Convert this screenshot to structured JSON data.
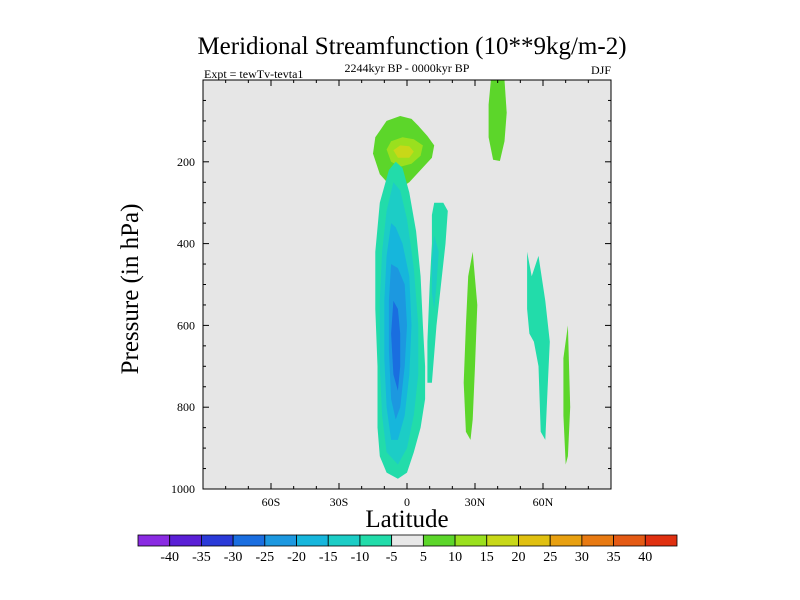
{
  "chart_data": {
    "type": "heatmap",
    "title": "Meridional Streamfunction (10**9kg/m-2)",
    "left_label": "Expt = tewTv-tevta1",
    "center_label": "2244kyr BP - 0000kyr BP",
    "right_label": "DJF",
    "xlabel": "Latitude",
    "ylabel": "Pressure (in hPa)",
    "xlim": [
      -90,
      90
    ],
    "ylim": [
      1000,
      0
    ],
    "x_ticks": [
      {
        "value": -60,
        "label": "60S"
      },
      {
        "value": -30,
        "label": "30S"
      },
      {
        "value": 0,
        "label": "0"
      },
      {
        "value": 30,
        "label": "30N"
      },
      {
        "value": 60,
        "label": "60N"
      }
    ],
    "y_ticks": [
      {
        "value": 200,
        "label": "200"
      },
      {
        "value": 400,
        "label": "400"
      },
      {
        "value": 600,
        "label": "600"
      },
      {
        "value": 800,
        "label": "800"
      },
      {
        "value": 1000,
        "label": "1000"
      }
    ],
    "missing_color": "#e6e6e6",
    "colorbar": {
      "labels": [
        "-40",
        "-35",
        "-30",
        "-25",
        "-20",
        "-15",
        "-10",
        "-5",
        "5",
        "10",
        "15",
        "20",
        "25",
        "30",
        "35",
        "40"
      ],
      "colors": [
        "#8a2be2",
        "#5a1fd6",
        "#2a3ad8",
        "#1a6ee0",
        "#1c98e0",
        "#16b6dc",
        "#1ccdc6",
        "#22dcaa",
        "#e8e8e8",
        "#5cd62a",
        "#9ae01e",
        "#c8d818",
        "#e0c010",
        "#e8a010",
        "#e87a12",
        "#e45a14",
        "#e03010"
      ]
    },
    "regions": [
      {
        "name": "sh-upper-positive",
        "band": "5..10",
        "color": "#5cd62a",
        "lat_lat": [
          -15,
          12
        ],
        "points": [
          [
            -12,
            230
          ],
          [
            -15,
            180
          ],
          [
            -14,
            140
          ],
          [
            -9,
            100
          ],
          [
            -3,
            88
          ],
          [
            2,
            95
          ],
          [
            5,
            112
          ],
          [
            9,
            137
          ],
          [
            12,
            160
          ],
          [
            11,
            190
          ],
          [
            6,
            220
          ],
          [
            1,
            250
          ],
          [
            -4,
            268
          ],
          [
            -8,
            255
          ]
        ]
      },
      {
        "name": "sh-upper-positive-10",
        "band": "10..15",
        "color": "#9ae01e",
        "points": [
          [
            -7,
            200
          ],
          [
            -9,
            170
          ],
          [
            -7,
            150
          ],
          [
            -2,
            140
          ],
          [
            3,
            145
          ],
          [
            7,
            160
          ],
          [
            6,
            185
          ],
          [
            2,
            205
          ],
          [
            -3,
            212
          ]
        ]
      },
      {
        "name": "sh-upper-positive-15",
        "band": "15..20",
        "color": "#c8d818",
        "points": [
          [
            -4,
            190
          ],
          [
            -6,
            172
          ],
          [
            -3,
            160
          ],
          [
            1,
            162
          ],
          [
            3,
            175
          ],
          [
            1,
            190
          ]
        ]
      },
      {
        "name": "nh-upper-positive",
        "band": "5..10",
        "color": "#5cd62a",
        "points": [
          [
            37,
            0
          ],
          [
            43,
            0
          ],
          [
            44,
            80
          ],
          [
            43,
            150
          ],
          [
            41,
            198
          ],
          [
            38,
            195
          ],
          [
            36,
            140
          ],
          [
            36,
            60
          ]
        ]
      },
      {
        "name": "nh-mid-positive",
        "band": "5..10",
        "color": "#5cd62a",
        "points": [
          [
            29,
            420
          ],
          [
            31,
            550
          ],
          [
            30,
            700
          ],
          [
            29,
            830
          ],
          [
            28,
            880
          ],
          [
            26,
            860
          ],
          [
            25,
            740
          ],
          [
            26,
            600
          ],
          [
            27,
            480
          ]
        ]
      },
      {
        "name": "nh-high-positive",
        "band": "5..10",
        "color": "#5cd62a",
        "points": [
          [
            71,
            600
          ],
          [
            72,
            800
          ],
          [
            71,
            920
          ],
          [
            70,
            940
          ],
          [
            69,
            820
          ],
          [
            69,
            680
          ]
        ]
      },
      {
        "name": "sh-main-negative",
        "band": "-10..-5",
        "color": "#22dcaa",
        "points": [
          [
            -5,
            200
          ],
          [
            -8,
            220
          ],
          [
            -12,
            300
          ],
          [
            -14,
            420
          ],
          [
            -14,
            560
          ],
          [
            -13,
            700
          ],
          [
            -13,
            850
          ],
          [
            -12,
            920
          ],
          [
            -9,
            960
          ],
          [
            -4,
            975
          ],
          [
            0,
            960
          ],
          [
            3,
            910
          ],
          [
            6,
            850
          ],
          [
            8,
            780
          ],
          [
            8,
            700
          ],
          [
            7,
            600
          ],
          [
            6,
            480
          ],
          [
            4,
            370
          ],
          [
            1,
            275
          ],
          [
            -2,
            215
          ]
        ]
      },
      {
        "name": "sh-main-negative-10",
        "band": "-15..-10",
        "color": "#1ccdc6",
        "points": [
          [
            -6,
            250
          ],
          [
            -9,
            320
          ],
          [
            -11,
            420
          ],
          [
            -12,
            540
          ],
          [
            -12,
            700
          ],
          [
            -11,
            820
          ],
          [
            -9,
            910
          ],
          [
            -4,
            940
          ],
          [
            0,
            900
          ],
          [
            3,
            820
          ],
          [
            5,
            720
          ],
          [
            5,
            600
          ],
          [
            3,
            460
          ],
          [
            0,
            340
          ],
          [
            -3,
            270
          ]
        ]
      },
      {
        "name": "sh-main-negative-15",
        "band": "-20..-15",
        "color": "#16b6dc",
        "points": [
          [
            -7,
            350
          ],
          [
            -9,
            430
          ],
          [
            -10,
            540
          ],
          [
            -10,
            680
          ],
          [
            -9,
            800
          ],
          [
            -7,
            880
          ],
          [
            -4,
            880
          ],
          [
            -1,
            820
          ],
          [
            1,
            720
          ],
          [
            2,
            600
          ],
          [
            1,
            480
          ],
          [
            -2,
            400
          ],
          [
            -5,
            360
          ]
        ]
      },
      {
        "name": "sh-main-negative-20",
        "band": "-25..-20",
        "color": "#1c98e0",
        "points": [
          [
            -7,
            450
          ],
          [
            -8,
            540
          ],
          [
            -8,
            660
          ],
          [
            -7,
            780
          ],
          [
            -5,
            830
          ],
          [
            -3,
            800
          ],
          [
            -1,
            700
          ],
          [
            0,
            600
          ],
          [
            -1,
            500
          ],
          [
            -4,
            460
          ]
        ]
      },
      {
        "name": "sh-main-negative-25",
        "band": "-30..-25",
        "color": "#1a6ee0",
        "points": [
          [
            -6,
            540
          ],
          [
            -7,
            620
          ],
          [
            -6,
            720
          ],
          [
            -4,
            760
          ],
          [
            -3,
            700
          ],
          [
            -3,
            620
          ],
          [
            -4,
            560
          ]
        ]
      },
      {
        "name": "sh-right-lobe",
        "band": "-10..-5",
        "color": "#22dcaa",
        "points": [
          [
            12,
            300
          ],
          [
            16,
            300
          ],
          [
            18,
            320
          ],
          [
            17,
            400
          ],
          [
            15,
            500
          ],
          [
            13,
            600
          ],
          [
            11,
            740
          ],
          [
            9,
            740
          ],
          [
            9,
            640
          ],
          [
            10,
            500
          ],
          [
            11,
            400
          ],
          [
            11,
            330
          ]
        ]
      },
      {
        "name": "sh-right-lobe-10",
        "band": "-15..-10",
        "color": "#1ccdc6",
        "points": [
          [
            12,
            380
          ],
          [
            14,
            420
          ],
          [
            13,
            500
          ],
          [
            12,
            560
          ],
          [
            11,
            520
          ],
          [
            11,
            440
          ]
        ]
      },
      {
        "name": "nh-negative-60n",
        "band": "-10..-5",
        "color": "#22dcaa",
        "points": [
          [
            53,
            420
          ],
          [
            55,
            480
          ],
          [
            58,
            430
          ],
          [
            61,
            540
          ],
          [
            63,
            640
          ],
          [
            62,
            760
          ],
          [
            61,
            880
          ],
          [
            59,
            860
          ],
          [
            58,
            700
          ],
          [
            56,
            640
          ],
          [
            54,
            620
          ],
          [
            53,
            560
          ]
        ]
      }
    ]
  }
}
